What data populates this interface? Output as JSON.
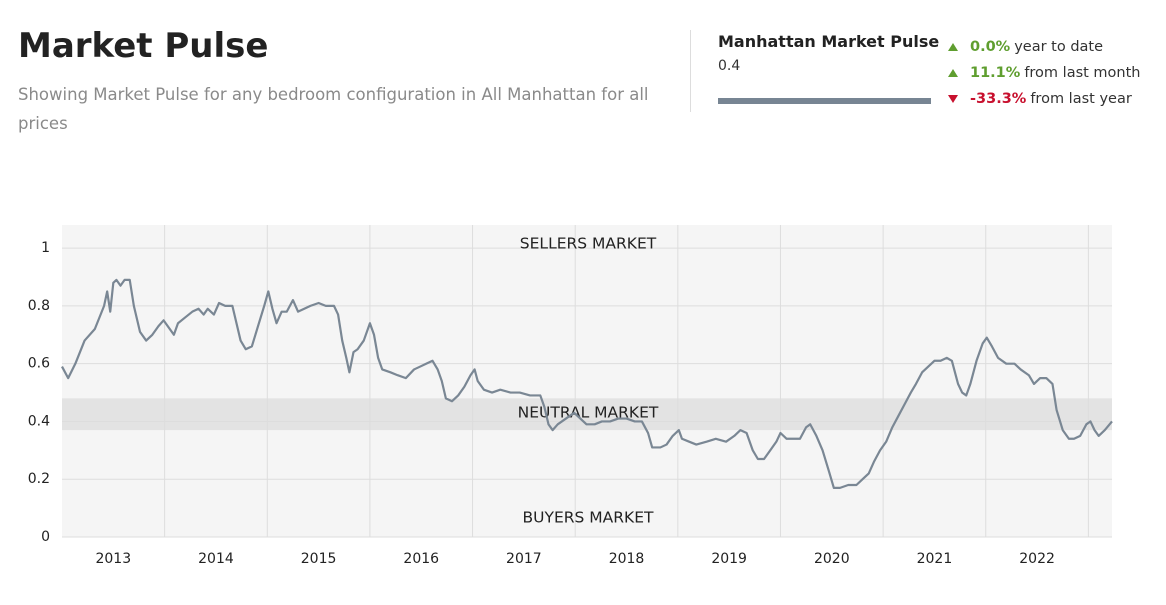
{
  "header": {
    "title": "Market Pulse",
    "subtitle": "Showing Market Pulse for any bedroom configuration in All Manhattan for all prices"
  },
  "summary": {
    "name": "Manhattan Market Pulse",
    "value": 0.4,
    "stats": [
      {
        "change": 0.0,
        "change_label": "0.0%",
        "text": "year to date"
      },
      {
        "change": 11.1,
        "change_label": "11.1%",
        "text": "from last month"
      },
      {
        "change": -33.3,
        "change_label": "-33.3%",
        "text": "from last year"
      }
    ]
  },
  "chart_data": {
    "type": "line",
    "color": "#7a8794",
    "grid": true,
    "xlim": [
      2013,
      2023.23
    ],
    "ylim": [
      0,
      1.08
    ],
    "yticks": [
      0,
      0.2,
      0.4,
      0.6,
      0.8,
      1
    ],
    "xticks": [
      {
        "value": 2013.5,
        "label": "2013"
      },
      {
        "value": 2014.5,
        "label": "2014"
      },
      {
        "value": 2015.5,
        "label": "2015"
      },
      {
        "value": 2016.5,
        "label": "2016"
      },
      {
        "value": 2017.5,
        "label": "2017"
      },
      {
        "value": 2018.5,
        "label": "2018"
      },
      {
        "value": 2019.5,
        "label": "2019"
      },
      {
        "value": 2020.5,
        "label": "2020"
      },
      {
        "value": 2021.5,
        "label": "2021"
      },
      {
        "value": 2022.5,
        "label": "2022"
      }
    ],
    "xgrid": [
      2014,
      2015,
      2016,
      2017,
      2018,
      2019,
      2020,
      2021,
      2022,
      2023
    ],
    "zones": [
      {
        "label": "SELLERS MARKET",
        "color": "#e07a73"
      },
      {
        "label": "NEUTRAL MARKET",
        "color": "#444444",
        "range": [
          0.37,
          0.48
        ]
      },
      {
        "label": "BUYERS MARKET",
        "color": "#7fb566"
      }
    ],
    "x": [
      2013,
      2013.06,
      2013.13,
      2013.22,
      2013.32,
      2013.41,
      2013.44,
      2013.47,
      2013.5,
      2013.53,
      2013.57,
      2013.61,
      2013.66,
      2013.7,
      2013.76,
      2013.82,
      2013.88,
      2013.94,
      2013.99,
      2014.05,
      2014.09,
      2014.13,
      2014.2,
      2014.27,
      2014.33,
      2014.38,
      2014.42,
      2014.48,
      2014.53,
      2014.59,
      2014.66,
      2014.7,
      2014.74,
      2014.79,
      2014.85,
      2014.91,
      2014.97,
      2015.01,
      2015.05,
      2015.09,
      2015.14,
      2015.19,
      2015.25,
      2015.3,
      2015.36,
      2015.42,
      2015.5,
      2015.57,
      2015.65,
      2015.69,
      2015.73,
      2015.77,
      2015.8,
      2015.84,
      2015.88,
      2015.94,
      2016,
      2016.04,
      2016.08,
      2016.12,
      2016.2,
      2016.27,
      2016.35,
      2016.43,
      2016.49,
      2016.55,
      2016.61,
      2016.66,
      2016.7,
      2016.74,
      2016.8,
      2016.86,
      2016.92,
      2016.98,
      2017.02,
      2017.05,
      2017.11,
      2017.19,
      2017.27,
      2017.37,
      2017.46,
      2017.56,
      2017.66,
      2017.7,
      2017.74,
      2017.78,
      2017.83,
      2017.91,
      2017.99,
      2018.05,
      2018.11,
      2018.19,
      2018.26,
      2018.34,
      2018.42,
      2018.5,
      2018.58,
      2018.65,
      2018.71,
      2018.75,
      2018.83,
      2018.89,
      2018.95,
      2019.01,
      2019.04,
      2019.11,
      2019.18,
      2019.28,
      2019.37,
      2019.47,
      2019.55,
      2019.61,
      2019.67,
      2019.73,
      2019.78,
      2019.84,
      2019.9,
      2019.96,
      2020,
      2020.06,
      2020.13,
      2020.19,
      2020.25,
      2020.29,
      2020.35,
      2020.41,
      2020.47,
      2020.52,
      2020.58,
      2020.66,
      2020.74,
      2020.8,
      2020.86,
      2020.91,
      2020.97,
      2021.03,
      2021.09,
      2021.15,
      2021.21,
      2021.27,
      2021.32,
      2021.38,
      2021.44,
      2021.5,
      2021.56,
      2021.62,
      2021.67,
      2021.73,
      2021.77,
      2021.81,
      2021.85,
      2021.91,
      2021.97,
      2022.01,
      2022.06,
      2022.12,
      2022.2,
      2022.28,
      2022.34,
      2022.42,
      2022.47,
      2022.53,
      2022.59,
      2022.65,
      2022.69,
      2022.75,
      2022.81,
      2022.86,
      2022.92,
      2022.98,
      2023.02,
      2023.06,
      2023.1,
      2023.16,
      2023.23
    ],
    "values": [
      0.59,
      0.55,
      0.6,
      0.68,
      0.72,
      0.8,
      0.85,
      0.78,
      0.88,
      0.89,
      0.87,
      0.89,
      0.89,
      0.8,
      0.71,
      0.68,
      0.7,
      0.73,
      0.75,
      0.72,
      0.7,
      0.74,
      0.76,
      0.78,
      0.79,
      0.77,
      0.79,
      0.77,
      0.81,
      0.8,
      0.8,
      0.74,
      0.68,
      0.65,
      0.66,
      0.73,
      0.8,
      0.85,
      0.79,
      0.74,
      0.78,
      0.78,
      0.82,
      0.78,
      0.79,
      0.8,
      0.81,
      0.8,
      0.8,
      0.77,
      0.68,
      0.62,
      0.57,
      0.64,
      0.65,
      0.68,
      0.74,
      0.7,
      0.62,
      0.58,
      0.57,
      0.56,
      0.55,
      0.58,
      0.59,
      0.6,
      0.61,
      0.58,
      0.54,
      0.48,
      0.47,
      0.49,
      0.52,
      0.56,
      0.58,
      0.54,
      0.51,
      0.5,
      0.51,
      0.5,
      0.5,
      0.49,
      0.49,
      0.45,
      0.39,
      0.37,
      0.39,
      0.41,
      0.43,
      0.41,
      0.39,
      0.39,
      0.4,
      0.4,
      0.41,
      0.41,
      0.4,
      0.4,
      0.36,
      0.31,
      0.31,
      0.32,
      0.35,
      0.37,
      0.34,
      0.33,
      0.32,
      0.33,
      0.34,
      0.33,
      0.35,
      0.37,
      0.36,
      0.3,
      0.27,
      0.27,
      0.3,
      0.33,
      0.36,
      0.34,
      0.34,
      0.34,
      0.38,
      0.39,
      0.35,
      0.3,
      0.23,
      0.17,
      0.17,
      0.18,
      0.18,
      0.2,
      0.22,
      0.26,
      0.3,
      0.33,
      0.38,
      0.42,
      0.46,
      0.5,
      0.53,
      0.57,
      0.59,
      0.61,
      0.61,
      0.62,
      0.61,
      0.53,
      0.5,
      0.49,
      0.53,
      0.61,
      0.67,
      0.69,
      0.66,
      0.62,
      0.6,
      0.6,
      0.58,
      0.56,
      0.53,
      0.55,
      0.55,
      0.53,
      0.44,
      0.37,
      0.34,
      0.34,
      0.35,
      0.39,
      0.4,
      0.37,
      0.35,
      0.37,
      0.4
    ]
  }
}
